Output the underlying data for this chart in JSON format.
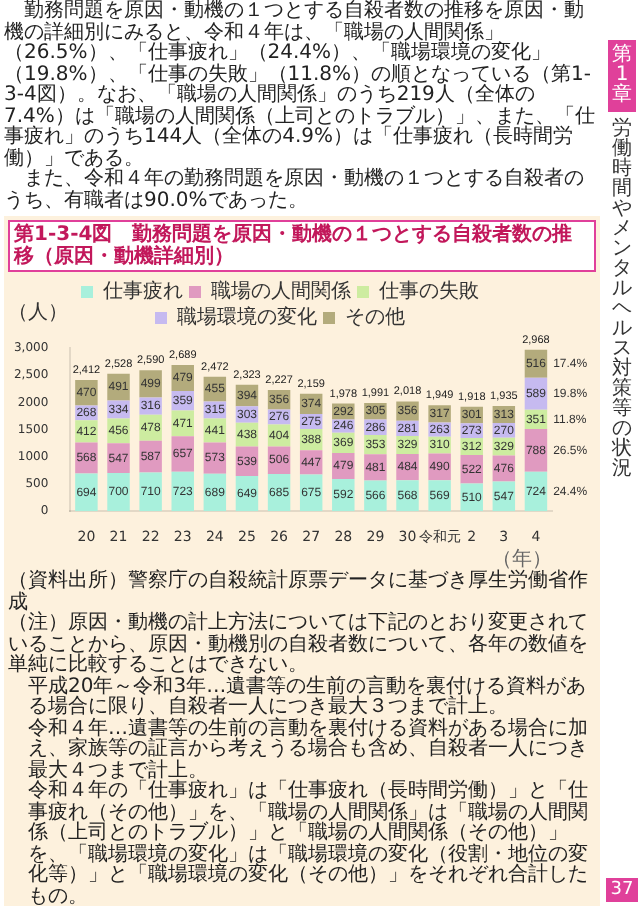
{
  "chart_data": {
    "type": "bar",
    "stacked": true,
    "title": "第1-3-4図　勤務問題を原因・動機の１つとする自殺者数の推移（原因・動機詳細別）",
    "xlabel": "（年）",
    "ylabel": "（人）",
    "categories": [
      "20",
      "21",
      "22",
      "23",
      "24",
      "25",
      "26",
      "27",
      "28",
      "29",
      "30",
      "令和元",
      "2",
      "3",
      "4"
    ],
    "series": [
      {
        "name": "仕事疲れ",
        "color": "#a8f0dc",
        "values": [
          694,
          700,
          710,
          723,
          689,
          649,
          685,
          675,
          592,
          566,
          568,
          569,
          510,
          547,
          724
        ]
      },
      {
        "name": "職場の人間関係",
        "color": "#e09ac0",
        "values": [
          568,
          547,
          587,
          657,
          573,
          539,
          506,
          447,
          479,
          481,
          484,
          490,
          522,
          476,
          788
        ]
      },
      {
        "name": "仕事の失敗",
        "color": "#cdeca0",
        "values": [
          412,
          456,
          478,
          471,
          441,
          438,
          404,
          388,
          369,
          353,
          329,
          310,
          312,
          329,
          351
        ]
      },
      {
        "name": "職場環境の変化",
        "color": "#c6baf0",
        "values": [
          268,
          334,
          316,
          359,
          315,
          303,
          276,
          275,
          246,
          286,
          281,
          263,
          273,
          270,
          589
        ]
      },
      {
        "name": "その他",
        "color": "#b3ab7c",
        "values": [
          470,
          491,
          499,
          479,
          455,
          394,
          356,
          374,
          292,
          305,
          356,
          317,
          301,
          313,
          516
        ]
      }
    ],
    "totals": [
      "2,412",
      "2,528",
      "2,590",
      "2,689",
      "2,472",
      "2,323",
      "2,227",
      "2,159",
      "1,978",
      "1,991",
      "2,018",
      "1,949",
      "1,918",
      "1,935",
      "2,968"
    ],
    "data_labels": true,
    "legend": "top",
    "grid": false,
    "ylim": [
      0,
      3000
    ],
    "yticks": [
      0,
      500,
      1000,
      1500,
      2000,
      {
        "value": 2500,
        "label": "2,500"
      },
      {
        "value": 3000,
        "label": "3,000"
      }
    ],
    "annotations": [
      "勤務問題を原因・動機の１つとする自殺者数の推移を原因・動機の詳細別にみると、令和４年は、「職場の人間関係」（26.5%）、「仕事疲れ」（24.4%）、「職場環境の変化」（19.8%）、「仕事の失敗」（11.8%）の順となっている（第1-3-4図）。なお、「職場の人間関係」のうち219人（全体の7.4%）は「職場の人間関係（上司とのトラブル）」、また、「仕事疲れ」のうち144人（全体の4.9%）は「仕事疲れ（長時間労働）」である。",
      "また、令和４年の勤務問題を原因・動機の１つとする自殺者のうち、有職者は90.0%であった。",
      "（資料出所）警察庁の自殺統計原票データに基づき厚生労働省作成",
      "（注）原因・動機の計上方法については下記のとおり変更されていることから、原因・動機別の自殺者数について、各年の数値を単純に比較することはできない。",
      "平成20年～令和3年…遺書等の生前の言動を裏付ける資料がある場合に限り、自殺者一人につき最大３つまで計上。",
      "令和４年…遺書等の生前の言動を裏付ける資料がある場合に加え、家族等の証言から考えうる場合も含め、自殺者一人につき最大４つまで計上。",
      "令和４年の「仕事疲れ」は「仕事疲れ（長時間労働）」と「仕事疲れ（その他）」を、「職場の人間関係」は「職場の人間関係（上司とのトラブル）」と「職場の人間関係（その他）」を、「職場環境の変化」は「職場環境の変化（役割・地位の変化等）」と「職場環境の変化（その他）」をそれぞれ合計したもの。",
      "24.4%",
      "26.5%",
      "11.8%",
      "19.8%",
      "17.4%",
      "第1章",
      "労働時間やメンタルヘルス対策等の状況",
      "37"
    ]
  }
}
